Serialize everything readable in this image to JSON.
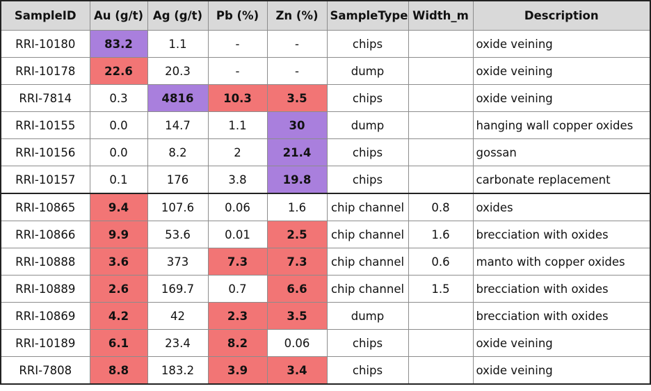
{
  "colors": {
    "purple_highlight": "#a97fdd",
    "red_highlight": "#f27575",
    "header_bg": "#d9d9d9"
  },
  "headers": [
    "SampleID",
    "Au (g/t)",
    "Ag (g/t)",
    "Pb (%)",
    "Zn (%)",
    "SampleType",
    "Width_m",
    "Description"
  ],
  "rows": [
    [
      "RRI-10180",
      "83.2",
      "1.1",
      "-",
      "-",
      "chips",
      "",
      "oxide veining"
    ],
    [
      "RRI-10178",
      "22.6",
      "20.3",
      "-",
      "-",
      "dump",
      "",
      "oxide veining"
    ],
    [
      "RRI-7814",
      "0.3",
      "4816",
      "10.3",
      "3.5",
      "chips",
      "",
      "oxide veining"
    ],
    [
      "RRI-10155",
      "0.0",
      "14.7",
      "1.1",
      "30",
      "dump",
      "",
      "hanging wall copper oxides"
    ],
    [
      "RRI-10156",
      "0.0",
      "8.2",
      "2",
      "21.4",
      "chips",
      "",
      "gossan"
    ],
    [
      "RRI-10157",
      "0.1",
      "176",
      "3.8",
      "19.8",
      "chips",
      "",
      "carbonate replacement"
    ],
    [
      "RRI-10865",
      "9.4",
      "107.6",
      "0.06",
      "1.6",
      "chip channel",
      "0.8",
      "oxides"
    ],
    [
      "RRI-10866",
      "9.9",
      "53.6",
      "0.01",
      "2.5",
      "chip channel",
      "1.6",
      "brecciation with oxides"
    ],
    [
      "RRI-10888",
      "3.6",
      "373",
      "7.3",
      "7.3",
      "chip channel",
      "0.6",
      "manto with copper oxides"
    ],
    [
      "RRI-10889",
      "2.6",
      "169.7",
      "0.7",
      "6.6",
      "chip channel",
      "1.5",
      "brecciation with oxides"
    ],
    [
      "RRI-10869",
      "4.2",
      "42",
      "2.3",
      "3.5",
      "dump",
      "",
      "brecciation with oxides"
    ],
    [
      "RRI-10189",
      "6.1",
      "23.4",
      "8.2",
      "0.06",
      "chips",
      "",
      "oxide veining"
    ],
    [
      "RRI-7808",
      "8.8",
      "183.2",
      "3.9",
      "3.4",
      "chips",
      "",
      "oxide veining"
    ]
  ],
  "highlights": [
    [
      "",
      "purple",
      "",
      "",
      "",
      "",
      "",
      ""
    ],
    [
      "",
      "red",
      "",
      "",
      "",
      "",
      "",
      ""
    ],
    [
      "",
      "",
      "purple",
      "red",
      "red",
      "",
      "",
      ""
    ],
    [
      "",
      "",
      "",
      "",
      "purple",
      "",
      "",
      ""
    ],
    [
      "",
      "",
      "",
      "",
      "purple",
      "",
      "",
      ""
    ],
    [
      "",
      "",
      "",
      "",
      "purple",
      "",
      "",
      ""
    ],
    [
      "",
      "red",
      "",
      "",
      "",
      "",
      "",
      ""
    ],
    [
      "",
      "red",
      "",
      "",
      "red",
      "",
      "",
      ""
    ],
    [
      "",
      "red",
      "",
      "red",
      "red",
      "",
      "",
      ""
    ],
    [
      "",
      "red",
      "",
      "",
      "red",
      "",
      "",
      ""
    ],
    [
      "",
      "red",
      "",
      "red",
      "red",
      "",
      "",
      ""
    ],
    [
      "",
      "red",
      "",
      "red",
      "",
      "",
      "",
      ""
    ],
    [
      "",
      "red",
      "",
      "red",
      "red",
      "",
      "",
      ""
    ]
  ],
  "group_break_before_row": 6
}
